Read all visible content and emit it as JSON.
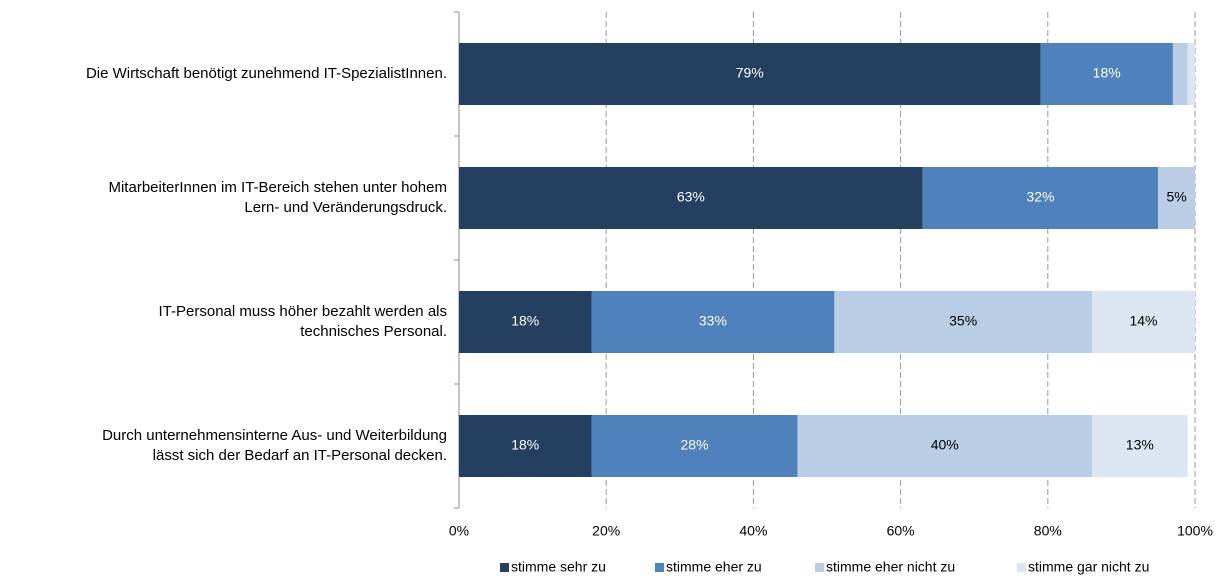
{
  "chart_data": {
    "type": "stacked-bar-horizontal",
    "categories": [
      "Die Wirtschaft benötigt zunehmend IT-SpezialistInnen.",
      "MitarbeiterInnen im IT-Bereich stehen unter hohem\nLern- und Veränderungsdruck.",
      "IT-Personal muss höher bezahlt werden als\ntechnisches Personal.",
      "Durch unternehmensinterne Aus- und Weiterbildung\nlässt sich der Bedarf an IT-Personal decken."
    ],
    "series": [
      {
        "name": "stimme sehr zu",
        "color": "#243f60",
        "values": [
          79,
          63,
          18,
          18
        ],
        "value_labels": [
          "79%",
          "63%",
          "18%",
          "18%"
        ]
      },
      {
        "name": "stimme eher zu",
        "color": "#4f81bd",
        "values": [
          18,
          32,
          33,
          28
        ],
        "value_labels": [
          "18%",
          "32%",
          "33%",
          "28%"
        ]
      },
      {
        "name": "stimme eher nicht zu",
        "color": "#b9cde5",
        "values": [
          2,
          5,
          35,
          40
        ],
        "value_labels": [
          null,
          "5%",
          "35%",
          "40%"
        ]
      },
      {
        "name": "stimme gar nicht zu",
        "color": "#dce6f2",
        "values": [
          1,
          0,
          14,
          13
        ],
        "value_labels": [
          null,
          null,
          "14%",
          "13%"
        ]
      }
    ],
    "xlim": [
      0,
      100
    ],
    "xticks": [
      {
        "value": 0,
        "label": "0%"
      },
      {
        "value": 20,
        "label": "20%"
      },
      {
        "value": 40,
        "label": "40%"
      },
      {
        "value": 60,
        "label": "60%"
      },
      {
        "value": 80,
        "label": "80%"
      },
      {
        "value": 100,
        "label": "100%"
      }
    ],
    "grid": true,
    "legend": "bottom"
  }
}
